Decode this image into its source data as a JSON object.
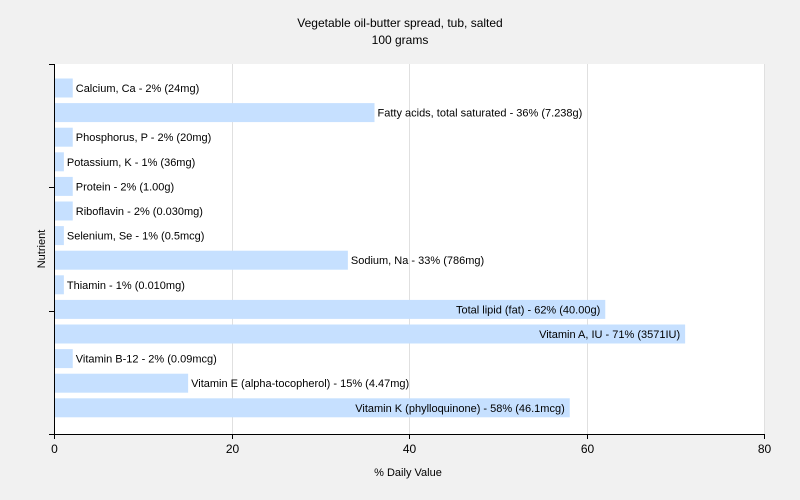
{
  "chart_data": {
    "type": "bar",
    "orientation": "horizontal",
    "title": "Vegetable oil-butter spread, tub, salted",
    "subtitle": "100 grams",
    "xlabel": "% Daily Value",
    "ylabel": "Nutrient",
    "xlim": [
      0,
      80
    ],
    "xticks": [
      0,
      20,
      40,
      60,
      80
    ],
    "grid": true,
    "bar_color": "#c6e0ff",
    "categories": [
      "Calcium, Ca",
      "Fatty acids, total saturated",
      "Phosphorus, P",
      "Potassium, K",
      "Protein",
      "Riboflavin",
      "Selenium, Se",
      "Sodium, Na",
      "Thiamin",
      "Total lipid (fat)",
      "Vitamin A, IU",
      "Vitamin B-12",
      "Vitamin E (alpha-tocopherol)",
      "Vitamin K (phylloquinone)"
    ],
    "values": [
      2,
      36,
      2,
      1,
      2,
      2,
      1,
      33,
      1,
      62,
      71,
      2,
      15,
      58
    ],
    "labels": [
      "Calcium, Ca - 2% (24mg)",
      "Fatty acids, total saturated - 36% (7.238g)",
      "Phosphorus, P - 2% (20mg)",
      "Potassium, K - 1% (36mg)",
      "Protein - 2% (1.00g)",
      "Riboflavin - 2% (0.030mg)",
      "Selenium, Se - 1% (0.5mcg)",
      "Sodium, Na - 33% (786mg)",
      "Thiamin - 1% (0.010mg)",
      "Total lipid (fat) - 62% (40.00g)",
      "Vitamin A, IU - 71% (3571IU)",
      "Vitamin B-12 - 2% (0.09mcg)",
      "Vitamin E (alpha-tocopherol) - 15% (4.47mg)",
      "Vitamin K (phylloquinone) - 58% (46.1mcg)"
    ]
  }
}
